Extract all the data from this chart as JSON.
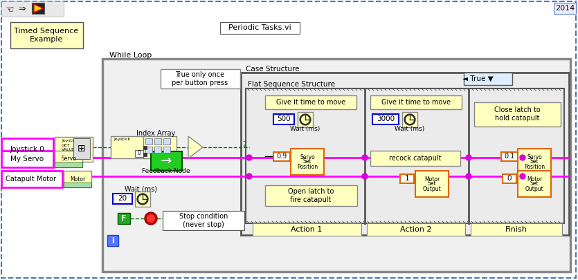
{
  "bg": "#ffffff",
  "dash_border": "#4477cc",
  "gray_border": "#888888",
  "dark_border": "#444444",
  "yellow_bg": "#ffffc0",
  "white_bg": "#ffffff",
  "magenta": "#ff00ff",
  "magenta_dot": "#dd00dd",
  "orange": "#dd6600",
  "blue_border": "#0000cc",
  "green_dark": "#007700",
  "green_bright": "#00aa00",
  "toolbar_year": "2014",
  "title_box": "Timed Sequence\nExample",
  "periodic_vi": "Periodic Tasks.vi",
  "while_loop": "While Loop",
  "case_struct": "Case Structure",
  "flat_seq": "Flat Sequence Structure",
  "true_label": "◄ True ▼",
  "joy_label": "Joystick 0",
  "servo_label": "My Servo",
  "catapult_label": "Catapult Motor",
  "index_array": "Index Array",
  "feedback_node": "Feedback Node",
  "true_once": "True only once\nper button press",
  "give_time": "Give it time to move",
  "wait_ms": "Wait (ms)",
  "action1": "Action 1",
  "action2": "Action 2",
  "finish": "Finish",
  "open_latch": "Open latch to\nfire catapult",
  "recock": "recock catapult",
  "close_latch": "Close latch to\nhold catapult",
  "wait_ms2": "Wait (ms)"
}
